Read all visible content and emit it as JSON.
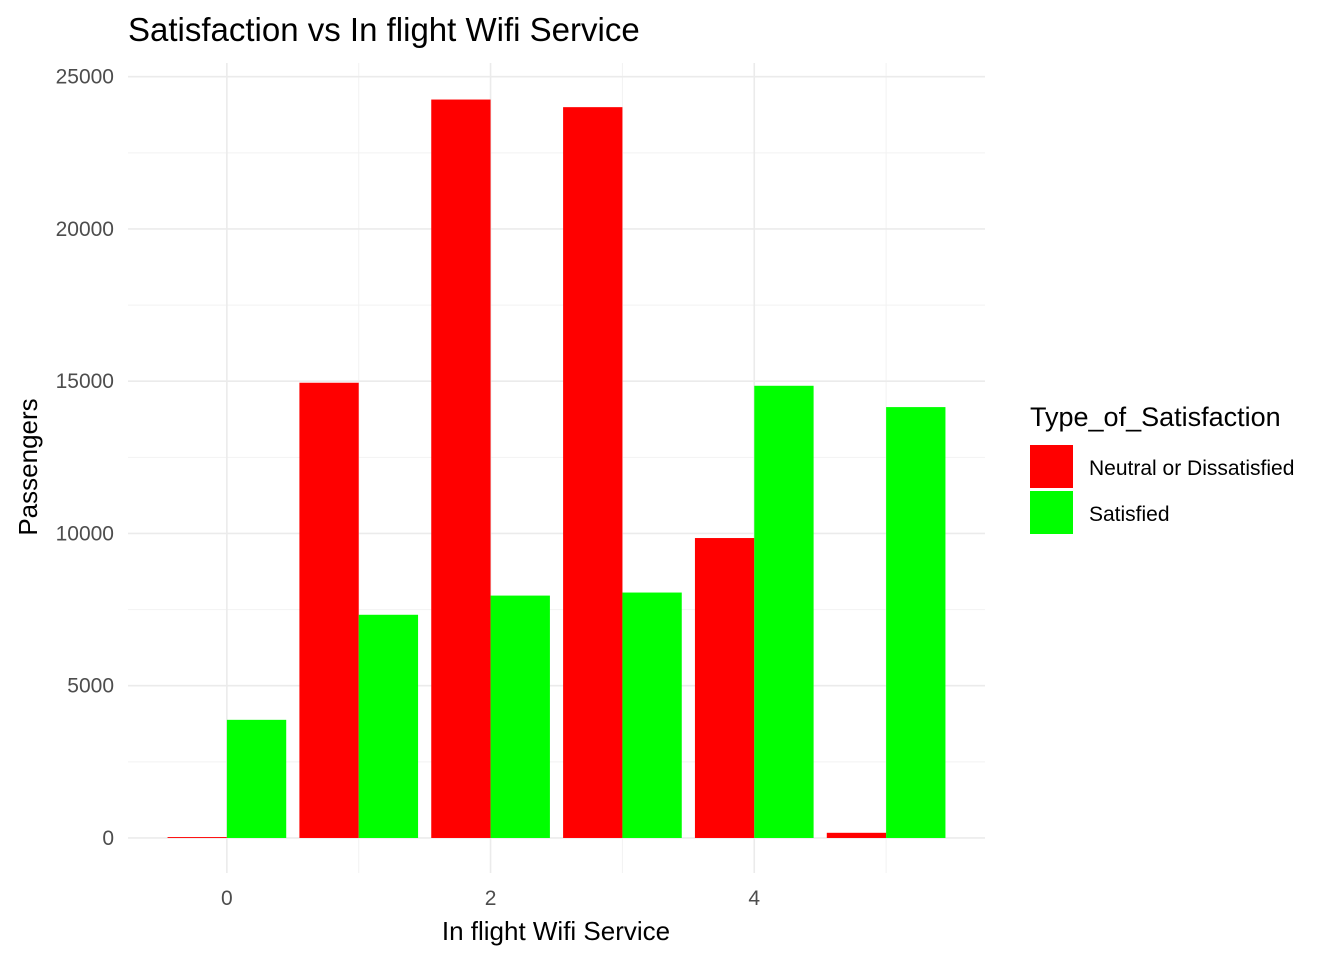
{
  "chart_data": {
    "type": "bar",
    "title": "Satisfaction vs In flight Wifi Service",
    "xlabel": "In flight Wifi Service",
    "ylabel": "Passengers",
    "x": [
      0,
      1,
      2,
      3,
      4,
      5
    ],
    "x_ticks": [
      "0",
      "2",
      "4"
    ],
    "y_ticks": [
      "0",
      "5000",
      "10000",
      "15000",
      "20000",
      "25000"
    ],
    "xlim": [
      -0.75,
      5.75
    ],
    "ylim": [
      -1150,
      25450
    ],
    "grid": true,
    "legend": {
      "title": "Type_of_Satisfaction",
      "position": "right"
    },
    "series": [
      {
        "name": "Neutral or Dissatisfied",
        "color": "#ff0000",
        "values": [
          30,
          14950,
          24250,
          24000,
          9850,
          170
        ]
      },
      {
        "name": "Satisfied",
        "color": "#00ff00",
        "values": [
          3880,
          7330,
          7960,
          8060,
          14850,
          14150
        ]
      }
    ]
  }
}
